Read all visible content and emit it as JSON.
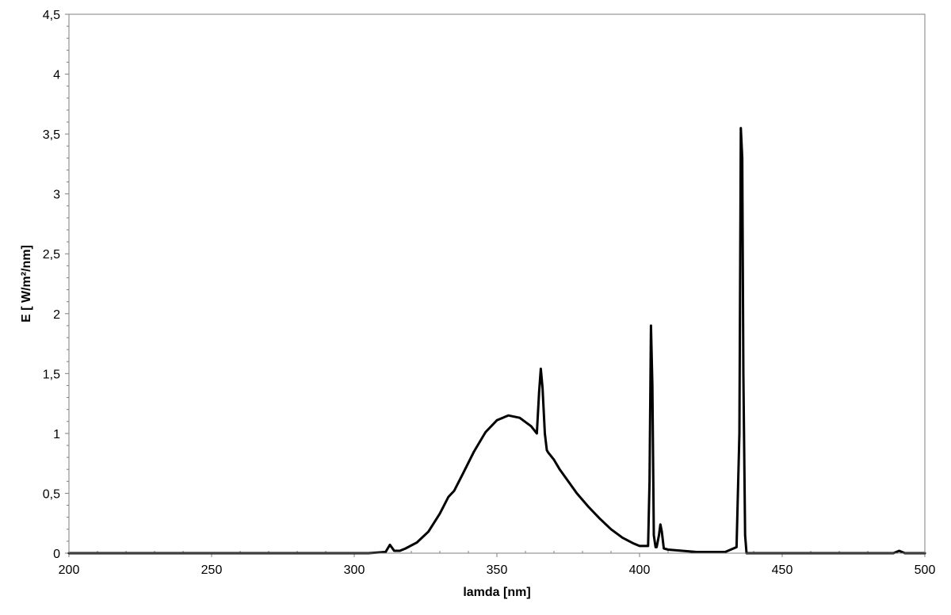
{
  "chart_data": {
    "type": "line",
    "title": "",
    "xlabel": "lamda [nm]",
    "ylabel": "E [ W/m²/nm]",
    "xlim": [
      200,
      500
    ],
    "ylim": [
      0,
      4.5
    ],
    "x_ticks": [
      200,
      250,
      300,
      350,
      400,
      450,
      500
    ],
    "x_tick_labels": [
      "200",
      "250",
      "300",
      "350",
      "400",
      "450",
      "500"
    ],
    "y_ticks": [
      0,
      0.5,
      1,
      1.5,
      2,
      2.5,
      3,
      3.5,
      4,
      4.5
    ],
    "y_tick_labels": [
      "0",
      "0,5",
      "1",
      "1,5",
      "2",
      "2,5",
      "3",
      "3,5",
      "4",
      "4,5"
    ],
    "grid": false,
    "legend": "none",
    "line_color": "#000000",
    "series": [
      {
        "x": [
          200,
          305,
          311,
          312.5,
          314,
          316,
          318,
          322,
          326,
          330,
          333,
          335,
          338,
          342,
          346,
          350,
          354,
          358,
          362,
          364,
          364.8,
          365.4,
          366,
          366.8,
          367.5,
          368,
          370,
          372,
          375,
          378,
          382,
          386,
          390,
          394,
          398,
          400,
          403,
          403.5,
          404,
          404.5,
          405,
          405.6,
          406,
          406.8,
          407.3,
          407.8,
          408.5,
          410,
          415,
          420,
          430,
          434,
          435,
          435.5,
          436,
          436.4,
          437,
          437.5,
          440,
          445,
          450,
          460,
          470,
          480,
          489,
          491,
          493,
          500
        ],
        "y": [
          0,
          0,
          0.01,
          0.07,
          0.02,
          0.02,
          0.04,
          0.09,
          0.18,
          0.33,
          0.47,
          0.52,
          0.66,
          0.85,
          1.01,
          1.11,
          1.15,
          1.13,
          1.06,
          1.0,
          1.35,
          1.54,
          1.38,
          1.0,
          0.86,
          0.84,
          0.78,
          0.7,
          0.6,
          0.5,
          0.39,
          0.29,
          0.2,
          0.13,
          0.08,
          0.06,
          0.06,
          0.6,
          1.9,
          1.4,
          0.15,
          0.05,
          0.05,
          0.15,
          0.24,
          0.18,
          0.04,
          0.03,
          0.02,
          0.01,
          0.01,
          0.05,
          1.0,
          3.55,
          3.3,
          1.5,
          0.15,
          0.0,
          0.0,
          0.0,
          0.0,
          0.0,
          0.0,
          0.0,
          0.0,
          0.02,
          0.0,
          0.0
        ]
      }
    ]
  }
}
